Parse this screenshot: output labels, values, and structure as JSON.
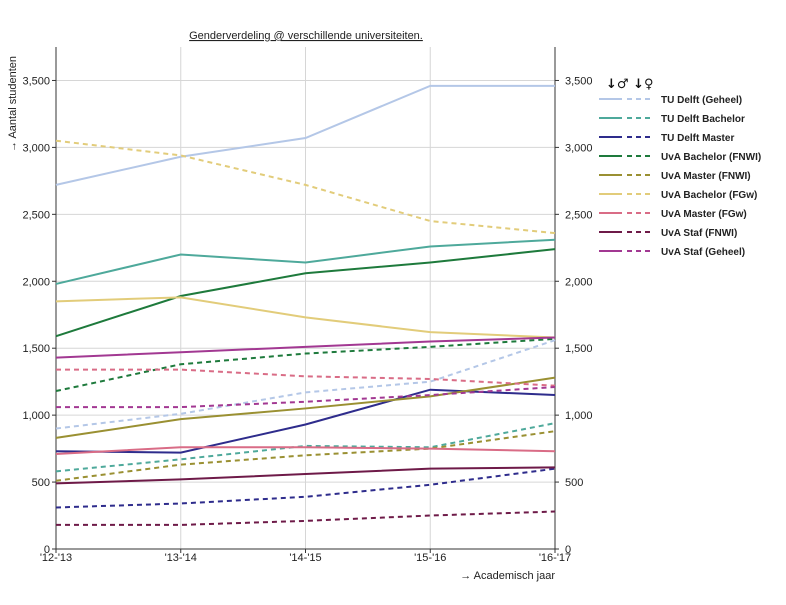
{
  "chart_data": {
    "type": "line",
    "title": "Genderverdeling @ verschillende universiteiten.",
    "xlabel": "→ Academisch jaar",
    "ylabel": "→ Aantal studenten",
    "legend_title": "↓♂ ↓♀",
    "legend_position": "top-right",
    "grid": true,
    "categories": [
      "'12-'13",
      "'13-'14",
      "'14-'15",
      "'15-'16",
      "'16-'17"
    ],
    "ylim": [
      0,
      3750
    ],
    "yticks": [
      0,
      500,
      1000,
      1500,
      2000,
      2500,
      3000,
      3500
    ],
    "ytick_labels": [
      "0",
      "500",
      "1,000",
      "1,500",
      "2,000",
      "2,500",
      "3,000",
      "3,500"
    ],
    "series": [
      {
        "name": "TU Delft (Geheel)",
        "color": "#b4c7e7",
        "male": [
          2720,
          2930,
          3070,
          3460,
          3460
        ],
        "female": [
          900,
          1010,
          1170,
          1250,
          1560
        ]
      },
      {
        "name": "TU Delft Bachelor",
        "color": "#4ea99b",
        "male": [
          1980,
          2200,
          2140,
          2260,
          2310
        ],
        "female": [
          580,
          670,
          770,
          760,
          940
        ]
      },
      {
        "name": "TU Delft Master",
        "color": "#2e2c8c",
        "male": [
          730,
          720,
          930,
          1190,
          1150
        ],
        "female": [
          310,
          340,
          390,
          480,
          600
        ]
      },
      {
        "name": "UvA Bachelor (FNWI)",
        "color": "#1e7a3c",
        "male": [
          1590,
          1890,
          2060,
          2140,
          2240
        ],
        "female": [
          1180,
          1380,
          1460,
          1510,
          1570
        ]
      },
      {
        "name": "UvA Master (FNWI)",
        "color": "#9a9032",
        "male": [
          830,
          970,
          1050,
          1140,
          1280
        ],
        "female": [
          510,
          630,
          700,
          750,
          880
        ]
      },
      {
        "name": "UvA Bachelor (FGw)",
        "color": "#e2cc7a",
        "male": [
          1850,
          1880,
          1730,
          1620,
          1580
        ],
        "female": [
          3050,
          2940,
          2720,
          2450,
          2360
        ]
      },
      {
        "name": "UvA Master (FGw)",
        "color": "#d96c86",
        "male": [
          710,
          760,
          760,
          750,
          730
        ],
        "female": [
          1340,
          1340,
          1290,
          1270,
          1220
        ]
      },
      {
        "name": "UvA Staf (FNWI)",
        "color": "#6e1a48",
        "male": [
          490,
          520,
          560,
          600,
          610
        ],
        "female": [
          180,
          180,
          210,
          250,
          280
        ]
      },
      {
        "name": "UvA Staf (Geheel)",
        "color": "#a23892",
        "male": [
          1430,
          1470,
          1510,
          1550,
          1580
        ],
        "female": [
          1060,
          1060,
          1100,
          1150,
          1210
        ]
      }
    ]
  }
}
